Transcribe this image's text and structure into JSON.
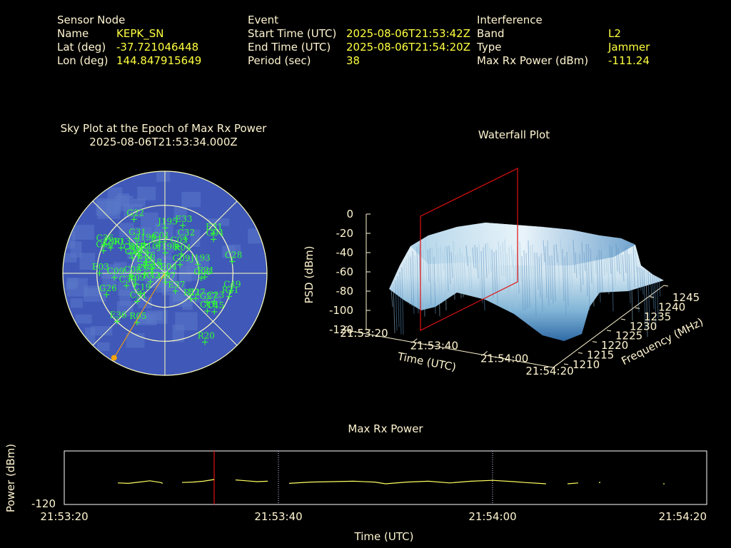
{
  "header": {
    "sensor": {
      "title": "Sensor Node",
      "rows": [
        {
          "label": "Name",
          "value": "KEPK_SN"
        },
        {
          "label": "Lat (deg)",
          "value": "-37.721046448"
        },
        {
          "label": "Lon (deg)",
          "value": "144.847915649"
        }
      ]
    },
    "event": {
      "title": "Event",
      "rows": [
        {
          "label": "Start Time (UTC)",
          "value": "2025-08-06T21:53:42Z"
        },
        {
          "label": "End Time (UTC)",
          "value": "2025-08-06T21:54:20Z"
        },
        {
          "label": "Period (sec)",
          "value": "38"
        }
      ]
    },
    "interference": {
      "title": "Interference",
      "rows": [
        {
          "label": "Band",
          "value": "L2"
        },
        {
          "label": "Type",
          "value": "Jammer"
        },
        {
          "label": "Max Rx Power (dBm)",
          "value": "-111.24"
        }
      ]
    }
  },
  "chart_data": [
    {
      "type": "scatter",
      "title": "Sky Plot at the Epoch of Max Rx Power",
      "subtitle": "2025-08-06T21:53:34.000Z",
      "colors": {
        "disc": "#4058b8",
        "disc_light": "#5a78c8",
        "grid": "#ffffc0",
        "sat": "#30ff30",
        "source": "#ffa500"
      },
      "source_azimuth_deg": 211,
      "source_elevation_deg": 0,
      "satellites": [
        {
          "id": "J195",
          "az": 0,
          "el": 50
        },
        {
          "id": "E33",
          "az": 20,
          "el": 45
        },
        {
          "id": "G22",
          "az": 330,
          "el": 35
        },
        {
          "id": "C32",
          "az": 30,
          "el": 55
        },
        {
          "id": "E31",
          "az": 50,
          "el": 35
        },
        {
          "id": "G04",
          "az": 55,
          "el": 38
        },
        {
          "id": "E12",
          "az": 345,
          "el": 65
        },
        {
          "id": "C01",
          "az": 350,
          "el": 62
        },
        {
          "id": "C03",
          "az": 25,
          "el": 64
        },
        {
          "id": "G31",
          "az": 320,
          "el": 50
        },
        {
          "id": "J199",
          "az": 325,
          "el": 58
        },
        {
          "id": "R04",
          "az": 40,
          "el": 68
        },
        {
          "id": "R18",
          "az": 305,
          "el": 58
        },
        {
          "id": "R10",
          "az": 320,
          "el": 66
        },
        {
          "id": "C36",
          "az": 295,
          "el": 30
        },
        {
          "id": "J200",
          "az": 295,
          "el": 37
        },
        {
          "id": "C60",
          "az": 290,
          "el": 32
        },
        {
          "id": "C06",
          "az": 300,
          "el": 55
        },
        {
          "id": "J198",
          "az": 0,
          "el": 72
        },
        {
          "id": "R13",
          "az": 300,
          "el": 45
        },
        {
          "id": "C42",
          "az": 305,
          "el": 62
        },
        {
          "id": "C16",
          "az": 295,
          "el": 58
        },
        {
          "id": "G09",
          "az": 60,
          "el": 75
        },
        {
          "id": "J193",
          "az": 75,
          "el": 60
        },
        {
          "id": "C28",
          "az": 80,
          "el": 30
        },
        {
          "id": "E21",
          "az": 95,
          "el": 55
        },
        {
          "id": "G08",
          "az": 98,
          "el": 58
        },
        {
          "id": "E03",
          "az": 270,
          "el": 32
        },
        {
          "id": "E11",
          "az": 290,
          "el": 70
        },
        {
          "id": "C46",
          "az": 300,
          "el": 70
        },
        {
          "id": "E18",
          "az": 290,
          "el": 78
        },
        {
          "id": "C08",
          "az": 265,
          "el": 60
        },
        {
          "id": "C09",
          "az": 265,
          "el": 45
        },
        {
          "id": "E05",
          "az": 268,
          "el": 72
        },
        {
          "id": "E02",
          "az": 275,
          "el": 78
        },
        {
          "id": "E04",
          "az": 90,
          "el": 88
        },
        {
          "id": "G26",
          "az": 250,
          "el": 35
        },
        {
          "id": "R09",
          "az": 250,
          "el": 62
        },
        {
          "id": "C39",
          "az": 252,
          "el": 54
        },
        {
          "id": "R42",
          "az": 240,
          "el": 75
        },
        {
          "id": "G07",
          "az": 178,
          "el": 82
        },
        {
          "id": "E37",
          "az": 150,
          "el": 72
        },
        {
          "id": "C49",
          "az": 105,
          "el": 30
        },
        {
          "id": "R21",
          "az": 110,
          "el": 30
        },
        {
          "id": "C19",
          "az": 230,
          "el": 62
        },
        {
          "id": "E27",
          "az": 130,
          "el": 55
        },
        {
          "id": "G27",
          "az": 125,
          "el": 45
        },
        {
          "id": "C23",
          "az": 120,
          "el": 40
        },
        {
          "id": "C51",
          "az": 225,
          "el": 55
        },
        {
          "id": "R11",
          "az": 135,
          "el": 58
        },
        {
          "id": "C45",
          "az": 128,
          "el": 35
        },
        {
          "id": "G16",
          "az": 132,
          "el": 40
        },
        {
          "id": "E36",
          "az": 225,
          "el": 30
        },
        {
          "id": "R05",
          "az": 210,
          "el": 40
        },
        {
          "id": "R20",
          "az": 150,
          "el": 20
        }
      ]
    },
    {
      "type": "area",
      "title": "Waterfall Plot",
      "xlabel": "Time (UTC)",
      "ylabel": "Frequency (MHz)",
      "zlabel": "PSD (dBm)",
      "x_ticks": [
        "21:53:20",
        "21:53:40",
        "21:54:00",
        "21:54:20"
      ],
      "y_ticks": [
        "1210",
        "1215",
        "1220",
        "1225",
        "1230",
        "1235",
        "1240",
        "1245"
      ],
      "z_ticks": [
        "0",
        "-20",
        "-40",
        "-60",
        "-80",
        "-100",
        "-120"
      ],
      "zlim": [
        -120,
        0
      ],
      "colors": {
        "surface_light": "#e8f3f8",
        "surface_dark": "#3070a8",
        "marker": "#e01010"
      }
    },
    {
      "type": "line",
      "title": "Max Rx Power",
      "xlabel": "Time (UTC)",
      "ylabel": "Power (dBm)",
      "y_tick": "-120",
      "x_ticks": [
        "21:53:20",
        "21:53:40",
        "21:54:00",
        "21:54:20"
      ],
      "xlim_sec": [
        0,
        60
      ],
      "marker_sec": 14,
      "dotted_sec": [
        20,
        40
      ],
      "colors": {
        "line": "#ffff60",
        "marker": "#e01010",
        "dotted": "#d0d0ff",
        "frame": "#ffffff"
      },
      "segments": [
        [
          [
            5,
            -114.8
          ],
          [
            6,
            -114.9
          ],
          [
            7,
            -114.6
          ],
          [
            8,
            -114.3
          ],
          [
            9,
            -114.7
          ],
          [
            9.2,
            -114.9
          ]
        ],
        [
          [
            11,
            -114.7
          ],
          [
            12,
            -114.6
          ],
          [
            13,
            -114.4
          ],
          [
            14,
            -114.0
          ]
        ],
        [
          [
            16,
            -114.1
          ],
          [
            17,
            -114.3
          ],
          [
            18,
            -114.5
          ],
          [
            19,
            -114.4
          ]
        ],
        [
          [
            21,
            -114.9
          ],
          [
            23,
            -114.6
          ],
          [
            25,
            -114.5
          ],
          [
            27,
            -114.4
          ],
          [
            29,
            -114.6
          ],
          [
            30,
            -115.0
          ],
          [
            32,
            -114.6
          ],
          [
            34,
            -114.4
          ],
          [
            36,
            -114.8
          ],
          [
            38,
            -114.4
          ],
          [
            40,
            -114.2
          ],
          [
            42,
            -114.5
          ],
          [
            43,
            -114.7
          ],
          [
            45,
            -115.0
          ]
        ],
        [
          [
            47,
            -115.0
          ],
          [
            48,
            -114.8
          ]
        ]
      ],
      "points": [
        [
          50,
          -114.7
        ],
        [
          56,
          -115.0
        ]
      ]
    }
  ]
}
